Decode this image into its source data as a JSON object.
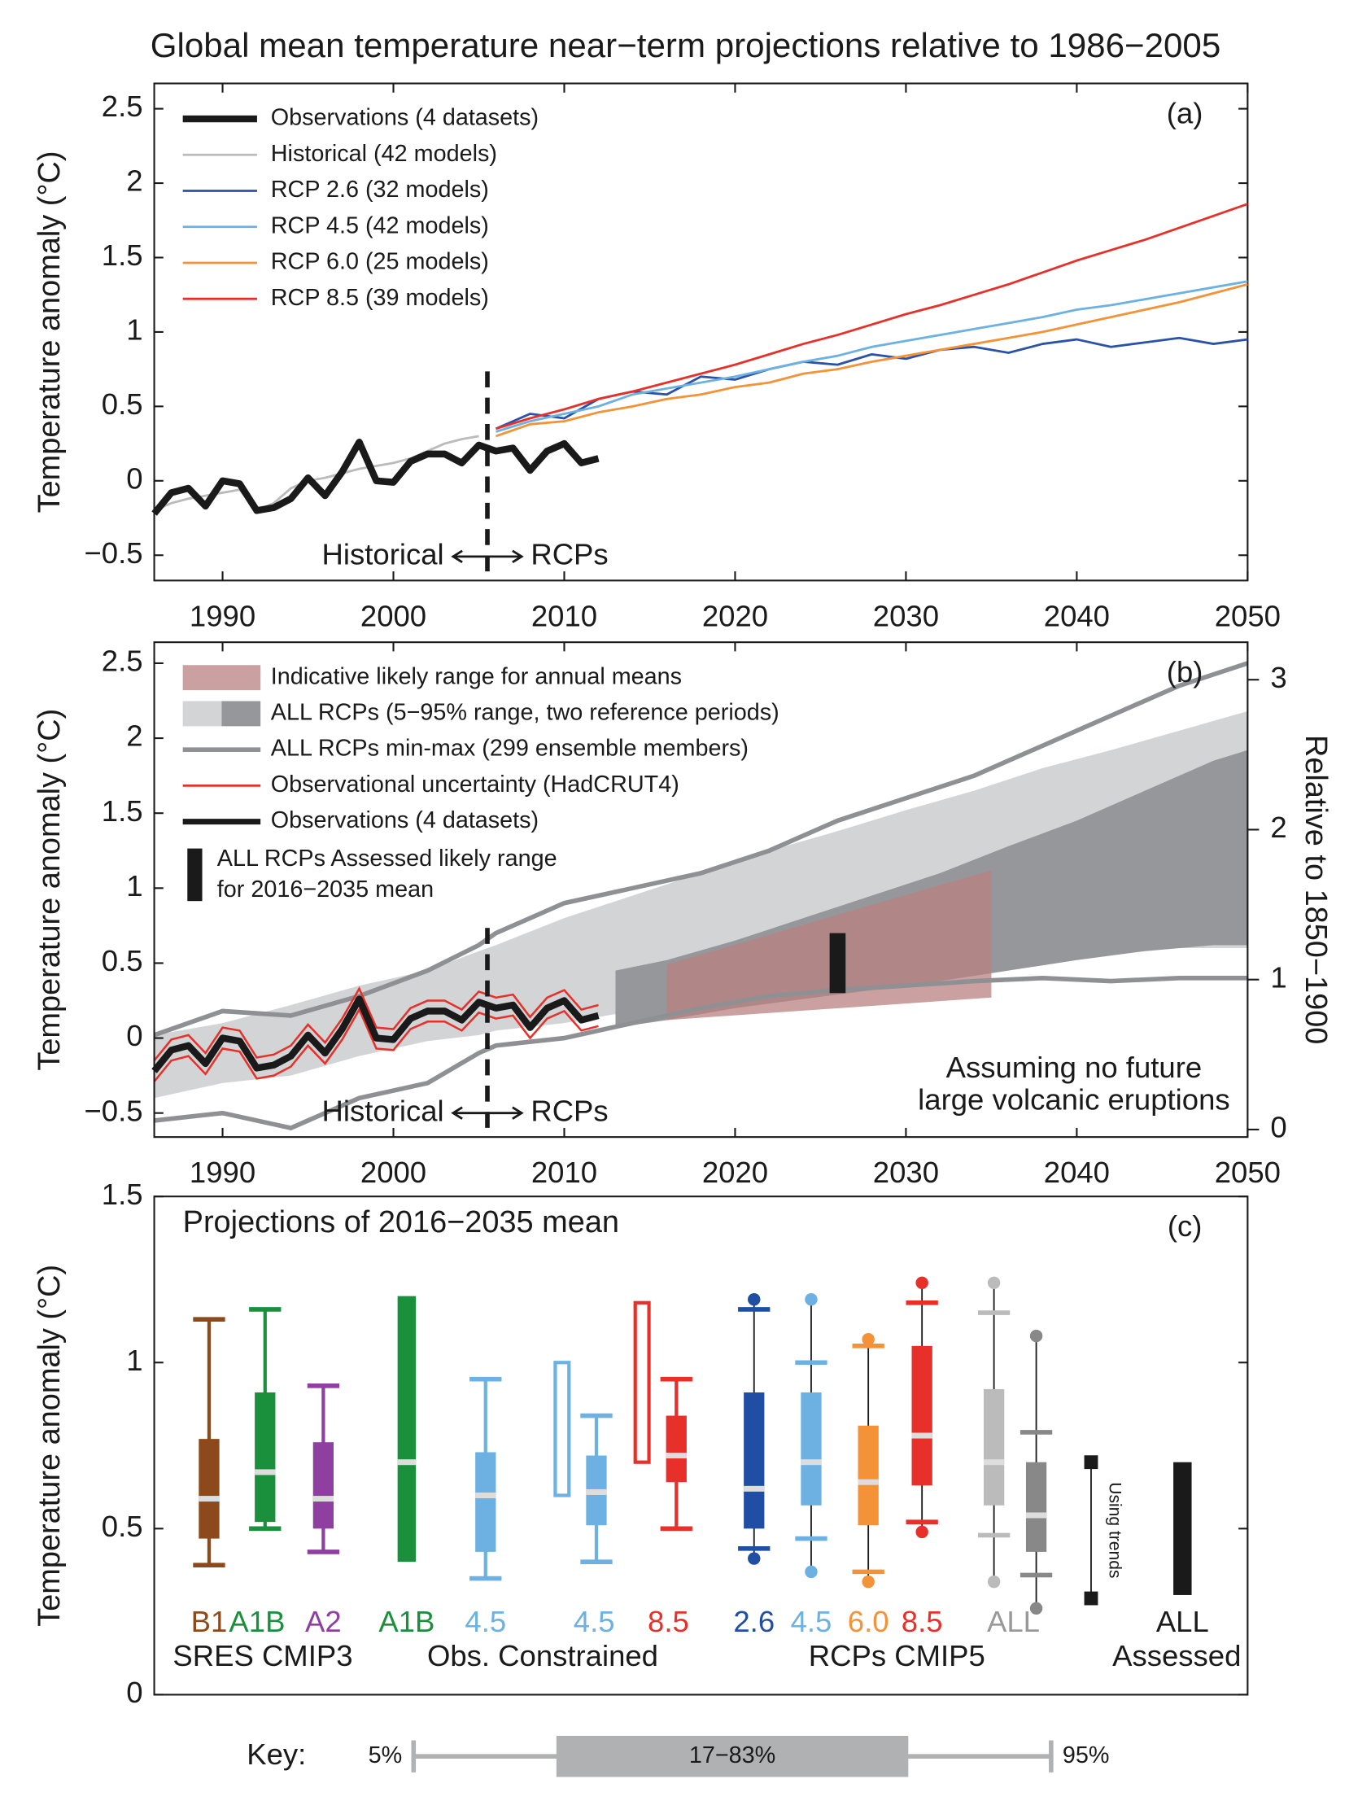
{
  "title": "Global mean temperature near−term projections relative to 1986−2005",
  "chart_data": [
    {
      "type": "line",
      "panel_label": "(a)",
      "ylabel": "Temperature anomaly (°C)",
      "xlim": [
        1986,
        2050
      ],
      "xticks": [
        1990,
        2000,
        2010,
        2020,
        2030,
        2040,
        2050
      ],
      "ylim": [
        -0.67,
        2.67
      ],
      "yticks": [
        {
          "value": -0.5,
          "label": "−0.5"
        },
        0,
        0.5,
        1,
        1.5,
        2,
        2.5
      ],
      "legend": "upper left",
      "divider": 2005.5,
      "annotations": [
        "Historical",
        "RCPs"
      ],
      "series": [
        {
          "name": "Observations (4 datasets)",
          "color": "#1a1a1a",
          "linewidth": 6,
          "x": [
            1986,
            1987,
            1988,
            1989,
            1990,
            1991,
            1992,
            1993,
            1994,
            1995,
            1996,
            1997,
            1998,
            1999,
            2000,
            2001,
            2002,
            2003,
            2004,
            2005,
            2006,
            2007,
            2008,
            2009,
            2010,
            2011,
            2012
          ],
          "values": [
            -0.22,
            -0.08,
            -0.05,
            -0.17,
            0.0,
            -0.02,
            -0.2,
            -0.18,
            -0.12,
            0.02,
            -0.1,
            0.06,
            0.26,
            0.0,
            -0.01,
            0.13,
            0.18,
            0.18,
            0.12,
            0.24,
            0.2,
            0.22,
            0.07,
            0.2,
            0.25,
            0.12,
            0.15
          ]
        },
        {
          "name": "Historical (42 models)",
          "color": "#bbbbbb",
          "linewidth": 2,
          "x": [
            1986,
            1987,
            1988,
            1989,
            1990,
            1991,
            1992,
            1993,
            1994,
            1995,
            1996,
            1997,
            1998,
            1999,
            2000,
            2001,
            2002,
            2003,
            2004,
            2005
          ],
          "values": [
            -0.2,
            -0.15,
            -0.12,
            -0.1,
            -0.08,
            -0.06,
            -0.2,
            -0.15,
            -0.05,
            0.0,
            0.02,
            0.05,
            0.08,
            0.1,
            0.12,
            0.15,
            0.2,
            0.25,
            0.28,
            0.3
          ]
        },
        {
          "name": "RCP 2.6 (32 models)",
          "color": "#2a52a8",
          "linewidth": 2,
          "x": [
            2006,
            2008,
            2010,
            2012,
            2014,
            2016,
            2018,
            2020,
            2022,
            2024,
            2026,
            2028,
            2030,
            2032,
            2034,
            2036,
            2038,
            2040,
            2042,
            2044,
            2046,
            2048,
            2050
          ],
          "values": [
            0.35,
            0.45,
            0.42,
            0.55,
            0.6,
            0.58,
            0.7,
            0.68,
            0.75,
            0.8,
            0.78,
            0.85,
            0.82,
            0.88,
            0.9,
            0.86,
            0.92,
            0.95,
            0.9,
            0.93,
            0.96,
            0.92,
            0.95
          ]
        },
        {
          "name": "RCP 4.5 (42 models)",
          "color": "#6cb1e1",
          "linewidth": 2,
          "x": [
            2006,
            2008,
            2010,
            2012,
            2014,
            2016,
            2018,
            2020,
            2022,
            2024,
            2026,
            2028,
            2030,
            2032,
            2034,
            2036,
            2038,
            2040,
            2042,
            2044,
            2046,
            2048,
            2050
          ],
          "values": [
            0.33,
            0.4,
            0.45,
            0.5,
            0.58,
            0.62,
            0.66,
            0.7,
            0.75,
            0.8,
            0.84,
            0.9,
            0.94,
            0.98,
            1.02,
            1.06,
            1.1,
            1.15,
            1.18,
            1.22,
            1.26,
            1.3,
            1.34
          ]
        },
        {
          "name": "RCP 6.0 (25 models)",
          "color": "#f39236",
          "linewidth": 2,
          "x": [
            2006,
            2008,
            2010,
            2012,
            2014,
            2016,
            2018,
            2020,
            2022,
            2024,
            2026,
            2028,
            2030,
            2032,
            2034,
            2036,
            2038,
            2040,
            2042,
            2044,
            2046,
            2048,
            2050
          ],
          "values": [
            0.3,
            0.38,
            0.4,
            0.46,
            0.5,
            0.55,
            0.58,
            0.63,
            0.66,
            0.72,
            0.75,
            0.8,
            0.84,
            0.88,
            0.92,
            0.96,
            1.0,
            1.05,
            1.1,
            1.15,
            1.2,
            1.26,
            1.32
          ]
        },
        {
          "name": "RCP 8.5 (39 models)",
          "color": "#e8302a",
          "linewidth": 2,
          "x": [
            2006,
            2008,
            2010,
            2012,
            2014,
            2016,
            2018,
            2020,
            2022,
            2024,
            2026,
            2028,
            2030,
            2032,
            2034,
            2036,
            2038,
            2040,
            2042,
            2044,
            2046,
            2048,
            2050
          ],
          "values": [
            0.35,
            0.42,
            0.48,
            0.55,
            0.6,
            0.66,
            0.72,
            0.78,
            0.85,
            0.92,
            0.98,
            1.05,
            1.12,
            1.18,
            1.25,
            1.32,
            1.4,
            1.48,
            1.55,
            1.62,
            1.7,
            1.78,
            1.86
          ]
        }
      ]
    },
    {
      "type": "range",
      "panel_label": "(b)",
      "ylabel": "Temperature anomaly (°C)",
      "y2label": "Relative to 1850−1900",
      "xlim": [
        1986,
        2050
      ],
      "xticks": [
        1990,
        2000,
        2010,
        2020,
        2030,
        2040,
        2050
      ],
      "ylim": [
        -0.66,
        2.64
      ],
      "yticks": [
        {
          "value": -0.5,
          "label": "−0.5"
        },
        0,
        0.5,
        1,
        1.5,
        2,
        2.5
      ],
      "y2lim": [
        -0.05,
        3.25
      ],
      "y2ticks": [
        0,
        1,
        2,
        3
      ],
      "legend": "upper left",
      "divider": 2005.5,
      "annotations": {
        "historical": "Historical",
        "rcps": "RCPs",
        "note": [
          "Assuming no future",
          "large volcanic eruptions"
        ]
      },
      "likely_range": {
        "name": "Indicative likely range for annual means",
        "color": "#b98080",
        "x": [
          2016,
          2035
        ],
        "lower": [
          0.12,
          0.27
        ],
        "upper": [
          0.49,
          1.12
        ]
      },
      "bands": {
        "name": "ALL RCPs (5−95% range, two reference periods)",
        "colors": [
          "#d3d4d6",
          "#96979b"
        ],
        "ranges": [
          {
            "x": [
              1986,
              1990,
              1994,
              1998,
              2002,
              2005,
              2006,
              2010,
              2014,
              2018,
              2022,
              2026,
              2030,
              2034,
              2038,
              2042,
              2046,
              2050
            ],
            "lower": [
              -0.4,
              -0.3,
              -0.25,
              -0.12,
              -0.02,
              0.02,
              0.05,
              0.1,
              0.18,
              0.25,
              0.32,
              0.38,
              0.44,
              0.5,
              0.55,
              0.58,
              0.6,
              0.6
            ],
            "upper": [
              0.02,
              0.1,
              0.22,
              0.35,
              0.45,
              0.58,
              0.62,
              0.8,
              0.95,
              1.1,
              1.25,
              1.38,
              1.52,
              1.65,
              1.8,
              1.92,
              2.05,
              2.18
            ]
          },
          {
            "x": [
              2013,
              2016,
              2020,
              2024,
              2028,
              2032,
              2036,
              2040,
              2044,
              2048,
              2050
            ],
            "lower": [
              0.07,
              0.12,
              0.2,
              0.26,
              0.32,
              0.38,
              0.45,
              0.52,
              0.58,
              0.62,
              0.62
            ],
            "upper": [
              0.45,
              0.52,
              0.65,
              0.8,
              0.95,
              1.1,
              1.28,
              1.45,
              1.65,
              1.85,
              1.92
            ]
          }
        ]
      },
      "minmax": {
        "name": "ALL RCPs min-max (299 ensemble members)",
        "color": "#8f9094",
        "x": [
          1986,
          1990,
          1994,
          1998,
          2002,
          2005,
          2006,
          2010,
          2014,
          2018,
          2022,
          2026,
          2030,
          2034,
          2038,
          2042,
          2046,
          2050
        ],
        "lower": [
          -0.55,
          -0.5,
          -0.6,
          -0.4,
          -0.3,
          -0.1,
          -0.05,
          0.0,
          0.1,
          0.2,
          0.28,
          0.32,
          0.35,
          0.38,
          0.4,
          0.38,
          0.4,
          0.4
        ],
        "upper": [
          0.02,
          0.18,
          0.15,
          0.28,
          0.45,
          0.62,
          0.7,
          0.9,
          1.0,
          1.1,
          1.25,
          1.45,
          1.6,
          1.75,
          1.95,
          2.15,
          2.35,
          2.5
        ]
      },
      "uncertainty": {
        "name": "Observational uncertainty (HadCRUT4)",
        "color": "#e8302a",
        "x": [
          1986,
          1987,
          1988,
          1989,
          1990,
          1991,
          1992,
          1993,
          1994,
          1995,
          1996,
          1997,
          1998,
          1999,
          2000,
          2001,
          2002,
          2003,
          2004,
          2005,
          2006,
          2007,
          2008,
          2009,
          2010,
          2011,
          2012
        ],
        "lower": [
          -0.29,
          -0.15,
          -0.12,
          -0.24,
          -0.07,
          -0.09,
          -0.27,
          -0.25,
          -0.19,
          -0.05,
          -0.17,
          -0.01,
          0.19,
          -0.07,
          -0.08,
          0.06,
          0.11,
          0.11,
          0.05,
          0.17,
          0.13,
          0.15,
          0.0,
          0.13,
          0.18,
          0.05,
          0.08
        ],
        "upper": [
          -0.15,
          -0.01,
          0.02,
          -0.1,
          0.07,
          0.05,
          -0.13,
          -0.11,
          -0.05,
          0.09,
          -0.03,
          0.13,
          0.33,
          0.07,
          0.06,
          0.2,
          0.25,
          0.25,
          0.19,
          0.31,
          0.27,
          0.29,
          0.14,
          0.27,
          0.32,
          0.19,
          0.22
        ]
      },
      "observations": {
        "name": "Observations (4 datasets)",
        "color": "#1a1a1a",
        "x": [
          1986,
          1987,
          1988,
          1989,
          1990,
          1991,
          1992,
          1993,
          1994,
          1995,
          1996,
          1997,
          1998,
          1999,
          2000,
          2001,
          2002,
          2003,
          2004,
          2005,
          2006,
          2007,
          2008,
          2009,
          2010,
          2011,
          2012
        ],
        "values": [
          -0.22,
          -0.08,
          -0.05,
          -0.17,
          0.0,
          -0.02,
          -0.2,
          -0.18,
          -0.12,
          0.02,
          -0.1,
          0.06,
          0.26,
          0.0,
          -0.01,
          0.13,
          0.18,
          0.18,
          0.12,
          0.24,
          0.2,
          0.22,
          0.07,
          0.2,
          0.25,
          0.12,
          0.15
        ]
      },
      "assessed": {
        "name": [
          "ALL RCPs Assessed likely range",
          "for 2016−2035 mean"
        ],
        "color": "#1a1a1a",
        "x": 2026,
        "lower": 0.3,
        "upper": 0.7
      }
    },
    {
      "type": "box",
      "title": "Projections of 2016−2035 mean",
      "panel_label": "(c)",
      "ylabel": "Temperature anomaly (°C)",
      "ylim": [
        0,
        1.5
      ],
      "yticks": [
        0,
        0.5,
        1,
        1.5
      ],
      "groups": [
        "SRES CMIP3",
        "Obs. Constrained",
        "RCPs CMIP5",
        "Assessed"
      ],
      "items": [
        {
          "label": "B1",
          "color": "#8c4a1c",
          "style": "box",
          "p5": 0.39,
          "p17": 0.47,
          "median": 0.59,
          "p83": 0.77,
          "p95": 1.13
        },
        {
          "label": "A1B",
          "color": "#1a8f3c",
          "style": "box",
          "p5": 0.5,
          "p17": 0.52,
          "median": 0.67,
          "p83": 0.91,
          "p95": 1.16
        },
        {
          "label": "A2",
          "color": "#8e3fa0",
          "style": "box",
          "p5": 0.43,
          "p17": 0.5,
          "median": 0.59,
          "p83": 0.76,
          "p95": 0.93
        },
        {
          "label": "A1B",
          "color": "#1a8f3c",
          "style": "bar",
          "lower": 0.4,
          "median": 0.7,
          "upper": 1.2
        },
        {
          "label": "4.5",
          "color": "#6cb1e1",
          "style": "box",
          "p5": 0.35,
          "p17": 0.43,
          "median": 0.6,
          "p83": 0.73,
          "p95": 0.95
        },
        {
          "label": null,
          "color": "#6cb1e1",
          "style": "outline",
          "lower": 0.6,
          "upper": 1.0
        },
        {
          "label": "4.5",
          "color": "#6cb1e1",
          "style": "box",
          "p5": 0.4,
          "p17": 0.51,
          "median": 0.61,
          "p83": 0.72,
          "p95": 0.84
        },
        {
          "label": null,
          "color": "#e8302a",
          "style": "outline",
          "lower": 0.7,
          "upper": 1.18
        },
        {
          "label": "8.5",
          "color": "#e8302a",
          "style": "box",
          "p5": 0.5,
          "p17": 0.64,
          "median": 0.72,
          "p83": 0.84,
          "p95": 0.95
        },
        {
          "label": "2.6",
          "color": "#1f4ea3",
          "style": "box",
          "min": 0.41,
          "p5": 0.44,
          "p17": 0.5,
          "median": 0.62,
          "p83": 0.91,
          "p95": 1.16,
          "max": 1.19
        },
        {
          "label": "4.5",
          "color": "#6cb1e1",
          "style": "box",
          "min": 0.37,
          "p5": 0.47,
          "p17": 0.57,
          "median": 0.7,
          "p83": 0.91,
          "p95": 1.0,
          "max": 1.19
        },
        {
          "label": "6.0",
          "color": "#f39236",
          "style": "box",
          "min": 0.34,
          "p5": 0.37,
          "p17": 0.51,
          "median": 0.64,
          "p83": 0.81,
          "p95": 1.05,
          "max": 1.07
        },
        {
          "label": "8.5",
          "color": "#e8302a",
          "style": "box",
          "min": 0.49,
          "p5": 0.52,
          "p17": 0.63,
          "median": 0.78,
          "p83": 1.05,
          "p95": 1.18,
          "max": 1.24
        },
        {
          "label": "ALL",
          "color": "#bbbbbb",
          "style": "box",
          "min": 0.34,
          "p5": 0.48,
          "p17": 0.57,
          "median": 0.7,
          "p83": 0.92,
          "p95": 1.15,
          "max": 1.24
        },
        {
          "label": null,
          "color": "#888888",
          "style": "box",
          "min": 0.26,
          "p5": 0.36,
          "p17": 0.43,
          "median": 0.54,
          "p83": 0.7,
          "p95": 0.79,
          "max": 1.08
        },
        {
          "label": "Using trends",
          "color": "#1a1a1a",
          "style": "trend",
          "lower": 0.29,
          "upper": 0.7
        },
        {
          "label": "ALL",
          "color": "#1a1a1a",
          "style": "bar",
          "lower": 0.3,
          "upper": 0.7
        }
      ],
      "key": {
        "title": "Key:",
        "low": "5%",
        "box": "17−83%",
        "high": "95%"
      }
    }
  ]
}
